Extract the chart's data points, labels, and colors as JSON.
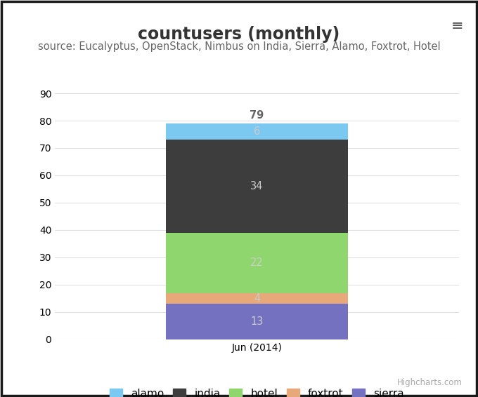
{
  "title": "countusers (monthly)",
  "subtitle": "source: Eucalyptus, OpenStack, Nimbus on India, Sierra, Alamo, Foxtrot, Hotel",
  "xlabel": "Jun (2014)",
  "background_color": "#ffffff",
  "border_color": "#1a1a1a",
  "series": [
    {
      "name": "sierra",
      "value": 13,
      "color": "#7472c0"
    },
    {
      "name": "foxtrot",
      "value": 4,
      "color": "#e8a97a"
    },
    {
      "name": "hotel",
      "value": 22,
      "color": "#8fd66f"
    },
    {
      "name": "india",
      "value": 34,
      "color": "#3d3d3d"
    },
    {
      "name": "alamo",
      "value": 6,
      "color": "#7bc8f0"
    }
  ],
  "total_label": "79",
  "ylim": [
    0,
    90
  ],
  "yticks": [
    0,
    10,
    20,
    30,
    40,
    50,
    60,
    70,
    80,
    90
  ],
  "grid_color": "#e0e0e0",
  "title_fontsize": 17,
  "subtitle_fontsize": 10.5,
  "tick_fontsize": 10,
  "legend_fontsize": 11,
  "bar_label_fontsize": 10.5,
  "bar_label_color": "#cccccc",
  "total_label_color": "#666666",
  "highcharts_text": "Highcharts.com",
  "bar_width": 0.45,
  "legend_order": [
    "alamo",
    "india",
    "hotel",
    "foxtrot",
    "sierra"
  ]
}
